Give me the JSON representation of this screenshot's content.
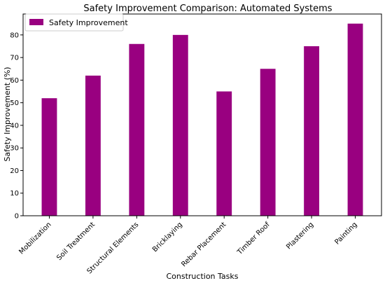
{
  "chart_data": {
    "type": "bar",
    "title": "Safety Improvement Comparison: Automated Systems",
    "xlabel": "Construction Tasks",
    "ylabel": "Safety Improvement (%)",
    "categories": [
      "Mobilization",
      "Soil Treatment",
      "Structural Elements",
      "Bricklaying",
      "Rebar Placement",
      "Timber Roof",
      "Plastering",
      "Painting"
    ],
    "series": [
      {
        "name": "Safety Improvement",
        "values": [
          52,
          62,
          76,
          80,
          55,
          65,
          75,
          85
        ],
        "color": "#990080"
      }
    ],
    "yticks": [
      0,
      10,
      20,
      30,
      40,
      50,
      60,
      70,
      80
    ],
    "ylim": [
      0,
      89.25
    ],
    "grid": false,
    "legend": "top-left"
  }
}
